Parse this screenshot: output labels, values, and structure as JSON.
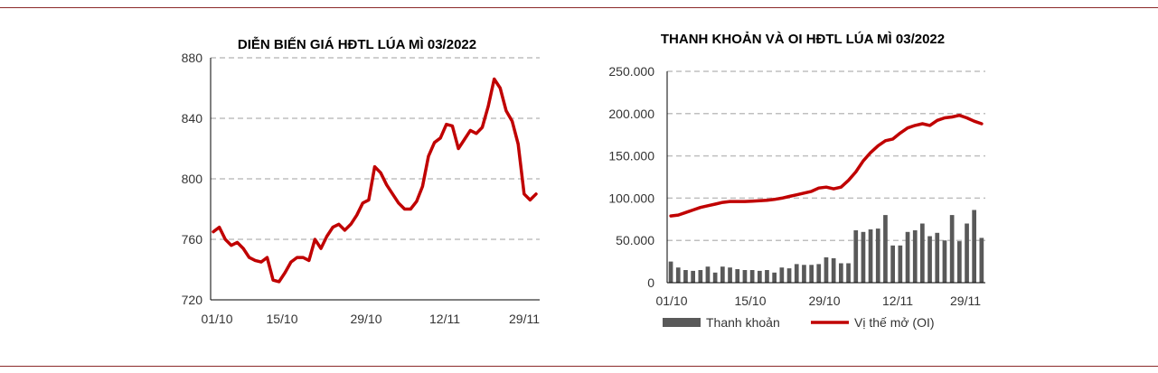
{
  "chart_data": [
    {
      "type": "line",
      "title": "DIỄN BIẾN GIÁ HĐTL LÚA MÌ 03/2022",
      "xlabel": "",
      "ylabel": "",
      "x_tick_labels": [
        "01/10",
        "15/10",
        "29/10",
        "12/11",
        "29/11"
      ],
      "y_tick_labels": [
        "720",
        "760",
        "800",
        "840",
        "880"
      ],
      "ylim": [
        720,
        880
      ],
      "grid": "horizontal-dashed",
      "colors": {
        "line": "#c00000",
        "grid": "#bfbfbf",
        "axis": "#000000"
      },
      "values": [
        765,
        768,
        760,
        756,
        758,
        754,
        748,
        746,
        745,
        748,
        733,
        732,
        738,
        745,
        748,
        748,
        746,
        760,
        754,
        762,
        768,
        770,
        766,
        770,
        776,
        784,
        786,
        808,
        804,
        796,
        790,
        784,
        780,
        780,
        785,
        795,
        815,
        824,
        827,
        836,
        835,
        820,
        826,
        832,
        830,
        834,
        848,
        866,
        860,
        845,
        838,
        823,
        790,
        786,
        790
      ]
    },
    {
      "type": "bar+line",
      "title": "THANH KHOẢN VÀ OI HĐTL LÚA MÌ  03/2022",
      "xlabel": "",
      "ylabel": "",
      "x_tick_labels": [
        "01/10",
        "15/10",
        "29/10",
        "12/11",
        "29/11"
      ],
      "y_tick_labels": [
        "0",
        "50.000",
        "100.000",
        "150.000",
        "200.000",
        "250.000"
      ],
      "ylim": [
        0,
        250000
      ],
      "grid": "horizontal-dashed",
      "legend_position": "bottom",
      "colors": {
        "bar": "#595959",
        "line": "#c00000",
        "grid": "#bfbfbf",
        "axis": "#000000"
      },
      "series": [
        {
          "name": "Thanh khoản",
          "kind": "bar",
          "values": [
            25000,
            18000,
            15000,
            14000,
            15000,
            19000,
            12000,
            19000,
            18000,
            16000,
            15000,
            15000,
            14000,
            15000,
            12000,
            18000,
            17000,
            22000,
            21000,
            21000,
            22000,
            30000,
            29000,
            23000,
            23000,
            62000,
            60000,
            63000,
            64000,
            80000,
            44000,
            44000,
            60000,
            62000,
            70000,
            55000,
            59000,
            50000,
            80000,
            49000,
            70000,
            86000,
            53000
          ]
        },
        {
          "name": "Vị thế mở (OI)",
          "kind": "line",
          "values": [
            79000,
            80000,
            83000,
            86000,
            89000,
            91000,
            93000,
            95000,
            96000,
            96000,
            96000,
            96500,
            97000,
            97500,
            98500,
            100000,
            102000,
            104000,
            106000,
            108000,
            112000,
            113000,
            111000,
            113000,
            121000,
            131000,
            144000,
            154000,
            162000,
            168000,
            170000,
            177000,
            183000,
            186000,
            188000,
            186000,
            192000,
            195000,
            196000,
            198000,
            195000,
            191000,
            188000
          ]
        }
      ]
    }
  ]
}
